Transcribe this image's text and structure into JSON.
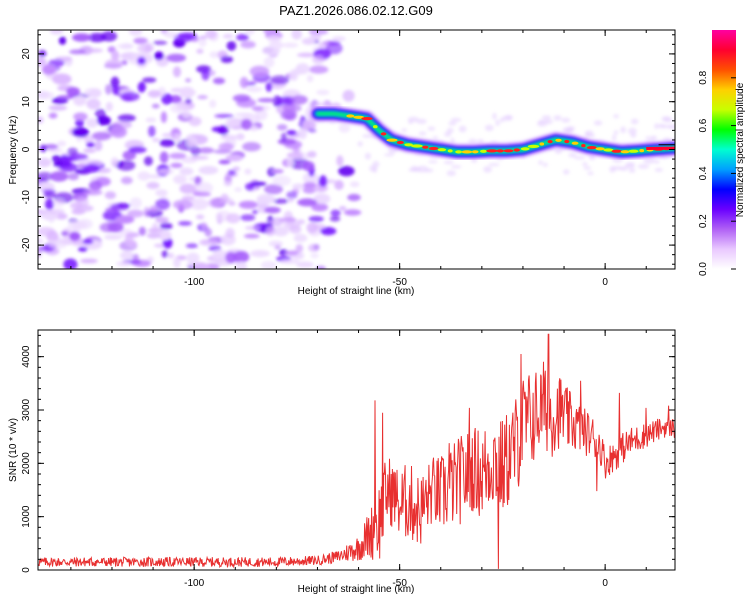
{
  "title": "PAZ1.2026.086.02.12.G09",
  "colors": {
    "snr_line": "#e83030",
    "cmap": [
      "#ffffff",
      "#e9c8ff",
      "#b060f5",
      "#6a00ff",
      "#0000ff",
      "#00a0ff",
      "#00ffd0",
      "#00ff00",
      "#c8ff00",
      "#ffd000",
      "#ff5000",
      "#ff0030",
      "#ff00a0"
    ]
  },
  "chart_data": [
    {
      "type": "heatmap",
      "title": "PAZ1.2026.086.02.12.G09",
      "xlabel": "Height of straight line (km)",
      "ylabel": "Frequency (Hz)",
      "xlim": [
        -138,
        17
      ],
      "ylim": [
        -25,
        25
      ],
      "xticks": [
        -100,
        -50,
        0
      ],
      "xtick_labels": [
        "-100",
        "-50",
        "0"
      ],
      "yticks": [
        -20,
        -10,
        0,
        10,
        20
      ],
      "ytick_labels": [
        "-20",
        "-10",
        "0",
        "10",
        "20"
      ],
      "noise_region_x": [
        -138,
        -68
      ],
      "signal_track": {
        "x": [
          -70,
          -66,
          -62,
          -58,
          -55,
          -52,
          -48,
          -44,
          -40,
          -36,
          -32,
          -28,
          -24,
          -20,
          -16,
          -12,
          -8,
          -4,
          0,
          4,
          8,
          12,
          17
        ],
        "y": [
          7.5,
          7.5,
          7.0,
          6.5,
          4.0,
          2.0,
          1.0,
          0.5,
          0.0,
          -0.5,
          -0.5,
          -0.3,
          -0.3,
          0.0,
          1.0,
          2.0,
          1.5,
          0.5,
          0.0,
          -0.5,
          -0.3,
          0.0,
          0.3
        ]
      },
      "colorbar": {
        "label": "Normalized spectral amplitude",
        "range": [
          0,
          1
        ],
        "ticks": [
          0.0,
          0.2,
          0.4,
          0.6,
          0.8
        ],
        "tick_labels": [
          "0.0",
          "0.2",
          "0.4",
          "0.6",
          "0.8"
        ]
      }
    },
    {
      "type": "line",
      "xlabel": "Height of straight line (km)",
      "ylabel": "SNR (10 * v/v)",
      "xlim": [
        -138,
        17
      ],
      "ylim": [
        0,
        4500
      ],
      "xticks": [
        -100,
        -50,
        0
      ],
      "xtick_labels": [
        "-100",
        "-50",
        "0"
      ],
      "yticks": [
        0,
        1000,
        2000,
        3000,
        4000
      ],
      "ytick_labels": [
        "0",
        "1000",
        "2000",
        "3000",
        "4000"
      ],
      "series": [
        {
          "name": "SNR",
          "x": [
            -138,
            -120,
            -100,
            -80,
            -70,
            -65,
            -60,
            -57,
            -55,
            -53,
            -51,
            -50,
            -48,
            -45,
            -42,
            -40,
            -37,
            -35,
            -32,
            -30,
            -27,
            -25,
            -22,
            -20,
            -17,
            -15,
            -13,
            -11,
            -9,
            -7,
            -5,
            -3,
            -1,
            0,
            3,
            6,
            9,
            12,
            15,
            17
          ],
          "y": [
            150,
            150,
            150,
            150,
            180,
            250,
            420,
            700,
            900,
            1500,
            1400,
            1200,
            1300,
            1100,
            1500,
            1400,
            1600,
            1700,
            1900,
            1800,
            2100,
            1900,
            2300,
            2700,
            2900,
            3100,
            2900,
            3000,
            2800,
            2700,
            2600,
            2500,
            2300,
            2000,
            2200,
            2400,
            2500,
            2600,
            2700,
            2650
          ],
          "noise": [
            90,
            90,
            90,
            90,
            90,
            120,
            250,
            500,
            800,
            700,
            600,
            700,
            750,
            700,
            650,
            750,
            800,
            850,
            800,
            900,
            900,
            950,
            950,
            1000,
            900,
            850,
            800,
            700,
            600,
            500,
            450,
            400,
            350,
            300,
            300,
            280,
            250,
            220,
            200,
            200
          ],
          "spikes": [
            {
              "x": -56.0,
              "y": 3180
            },
            {
              "x": -54.2,
              "y": 2950
            },
            {
              "x": -38.0,
              "y": 2380
            },
            {
              "x": -33.0,
              "y": 3040
            },
            {
              "x": -26.0,
              "y": 20
            },
            {
              "x": -20.5,
              "y": 4050
            },
            {
              "x": -13.8,
              "y": 4420
            },
            {
              "x": -6.0,
              "y": 3550
            },
            {
              "x": -2.0,
              "y": 1480
            },
            {
              "x": 3.5,
              "y": 3320
            },
            {
              "x": 10.0,
              "y": 3040
            },
            {
              "x": 15.5,
              "y": 3080
            }
          ]
        }
      ]
    }
  ]
}
